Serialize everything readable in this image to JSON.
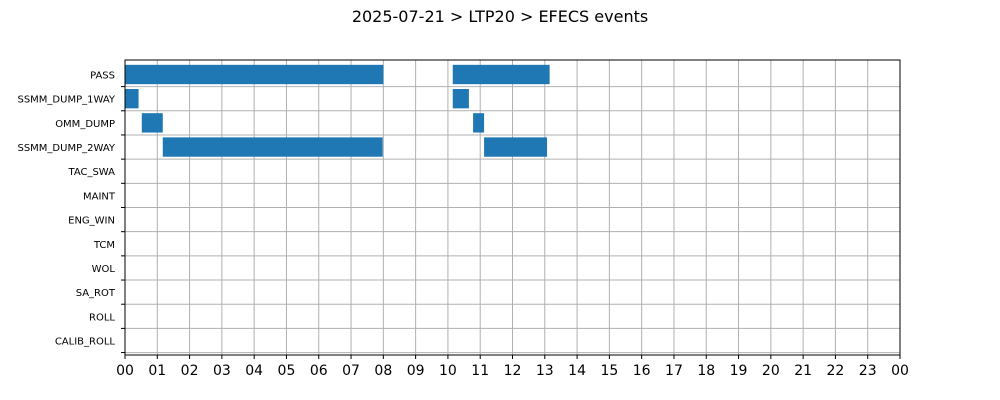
{
  "chart_data": {
    "type": "bar",
    "orientation": "horizontal-timeline",
    "title": "2025-07-21 > LTP20 > EFECS events",
    "xlabel": "",
    "ylabel": "",
    "x_unit": "hours",
    "xlim": [
      0,
      24
    ],
    "x_tick_values": [
      0,
      1,
      2,
      3,
      4,
      5,
      6,
      7,
      8,
      9,
      10,
      11,
      12,
      13,
      14,
      15,
      16,
      17,
      18,
      19,
      20,
      21,
      22,
      23,
      24
    ],
    "x_tick_labels": [
      "00",
      "01",
      "02",
      "03",
      "04",
      "05",
      "06",
      "07",
      "08",
      "09",
      "10",
      "11",
      "12",
      "13",
      "14",
      "15",
      "16",
      "17",
      "18",
      "19",
      "20",
      "21",
      "22",
      "23",
      "00"
    ],
    "grid": true,
    "color": "#1f77b4",
    "categories": [
      "PASS",
      "SSMM_DUMP_1WAY",
      "OMM_DUMP",
      "SSMM_DUMP_2WAY",
      "TAC_SWA",
      "MAINT",
      "ENG_WIN",
      "TCM",
      "WOL",
      "SA_ROT",
      "ROLL",
      "CALIB_ROLL"
    ],
    "events": [
      {
        "category": "PASS",
        "start": 0.0,
        "end": 8.0
      },
      {
        "category": "PASS",
        "start": 10.15,
        "end": 13.15
      },
      {
        "category": "SSMM_DUMP_1WAY",
        "start": 0.0,
        "end": 0.42
      },
      {
        "category": "SSMM_DUMP_1WAY",
        "start": 10.15,
        "end": 10.65
      },
      {
        "category": "OMM_DUMP",
        "start": 0.52,
        "end": 1.17
      },
      {
        "category": "OMM_DUMP",
        "start": 10.78,
        "end": 11.12
      },
      {
        "category": "SSMM_DUMP_2WAY",
        "start": 1.17,
        "end": 7.98
      },
      {
        "category": "SSMM_DUMP_2WAY",
        "start": 11.12,
        "end": 13.07
      }
    ]
  }
}
